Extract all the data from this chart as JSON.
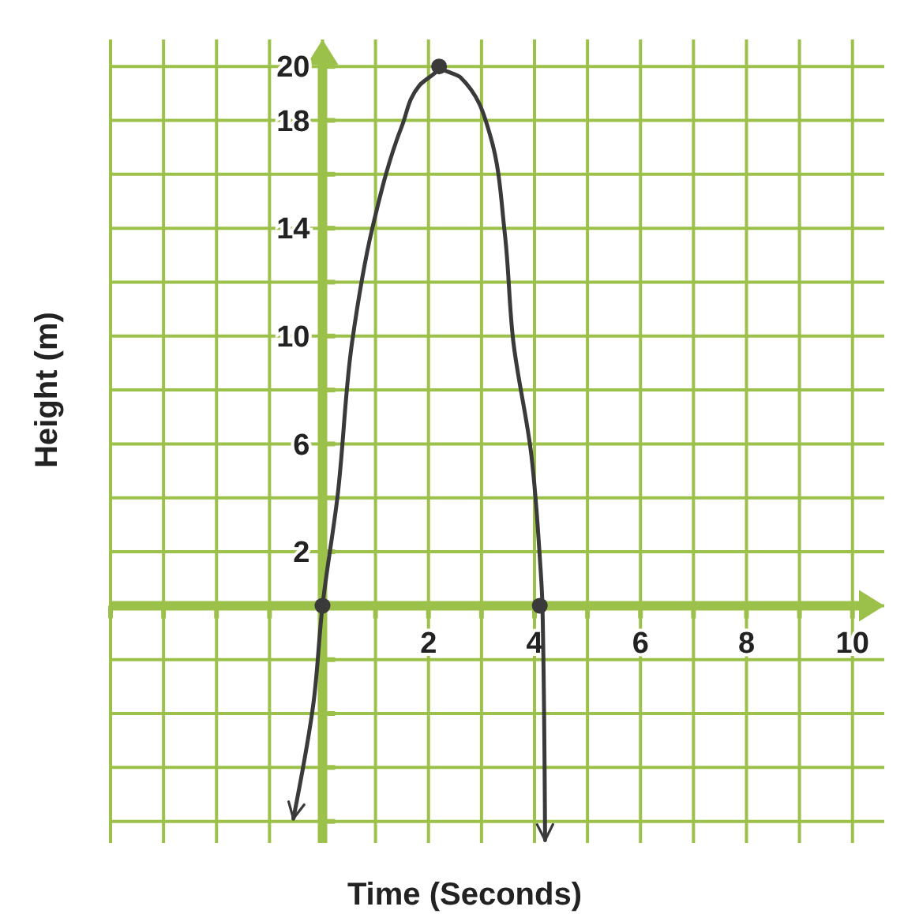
{
  "chart_data": {
    "type": "line",
    "xlabel": "Time (Seconds)",
    "ylabel": "Height (m)",
    "xlim": [
      -4,
      10.6
    ],
    "ylim": [
      -8.8,
      21
    ],
    "xticks": [
      {
        "value": -4,
        "label": null
      },
      {
        "value": -3,
        "label": null
      },
      {
        "value": -2,
        "label": null
      },
      {
        "value": -1,
        "label": null
      },
      {
        "value": 0,
        "label": null
      },
      {
        "value": 1,
        "label": null
      },
      2,
      {
        "value": 3,
        "label": null
      },
      4,
      {
        "value": 5,
        "label": null
      },
      6,
      {
        "value": 7,
        "label": null
      },
      8,
      {
        "value": 9,
        "label": null
      },
      10
    ],
    "yticks": [
      {
        "value": -8,
        "label": null
      },
      {
        "value": -6,
        "label": null
      },
      {
        "value": -4,
        "label": null
      },
      {
        "value": -2,
        "label": null
      },
      {
        "value": 0,
        "label": null
      },
      2,
      {
        "value": 4,
        "label": null
      },
      6,
      {
        "value": 8,
        "label": null
      },
      10,
      {
        "value": 12,
        "label": null
      },
      14,
      {
        "value": 16,
        "label": null
      },
      18,
      20
    ],
    "grid": true,
    "series": [
      {
        "type": "line",
        "color": "#3a3a3a",
        "marker": "none",
        "x": [
          -0.55,
          -0.17,
          0,
          0.28,
          0.56,
          0.94,
          1.5,
          1.83,
          2.2,
          2.6,
          3.17,
          3.44,
          3.6,
          3.94,
          4.1,
          4.15,
          4.2
        ],
        "values": [
          -7.9,
          -3.6,
          0,
          4,
          9.8,
          14,
          17.8,
          19.3,
          20,
          19.6,
          17.4,
          13.8,
          9.8,
          5.6,
          1.8,
          0,
          -8.7
        ]
      },
      {
        "type": "scatter",
        "color": "#3a3a3a",
        "marker": "circle",
        "x": [
          0,
          2.2,
          4.1
        ],
        "values": [
          0,
          20,
          0
        ]
      }
    ]
  }
}
